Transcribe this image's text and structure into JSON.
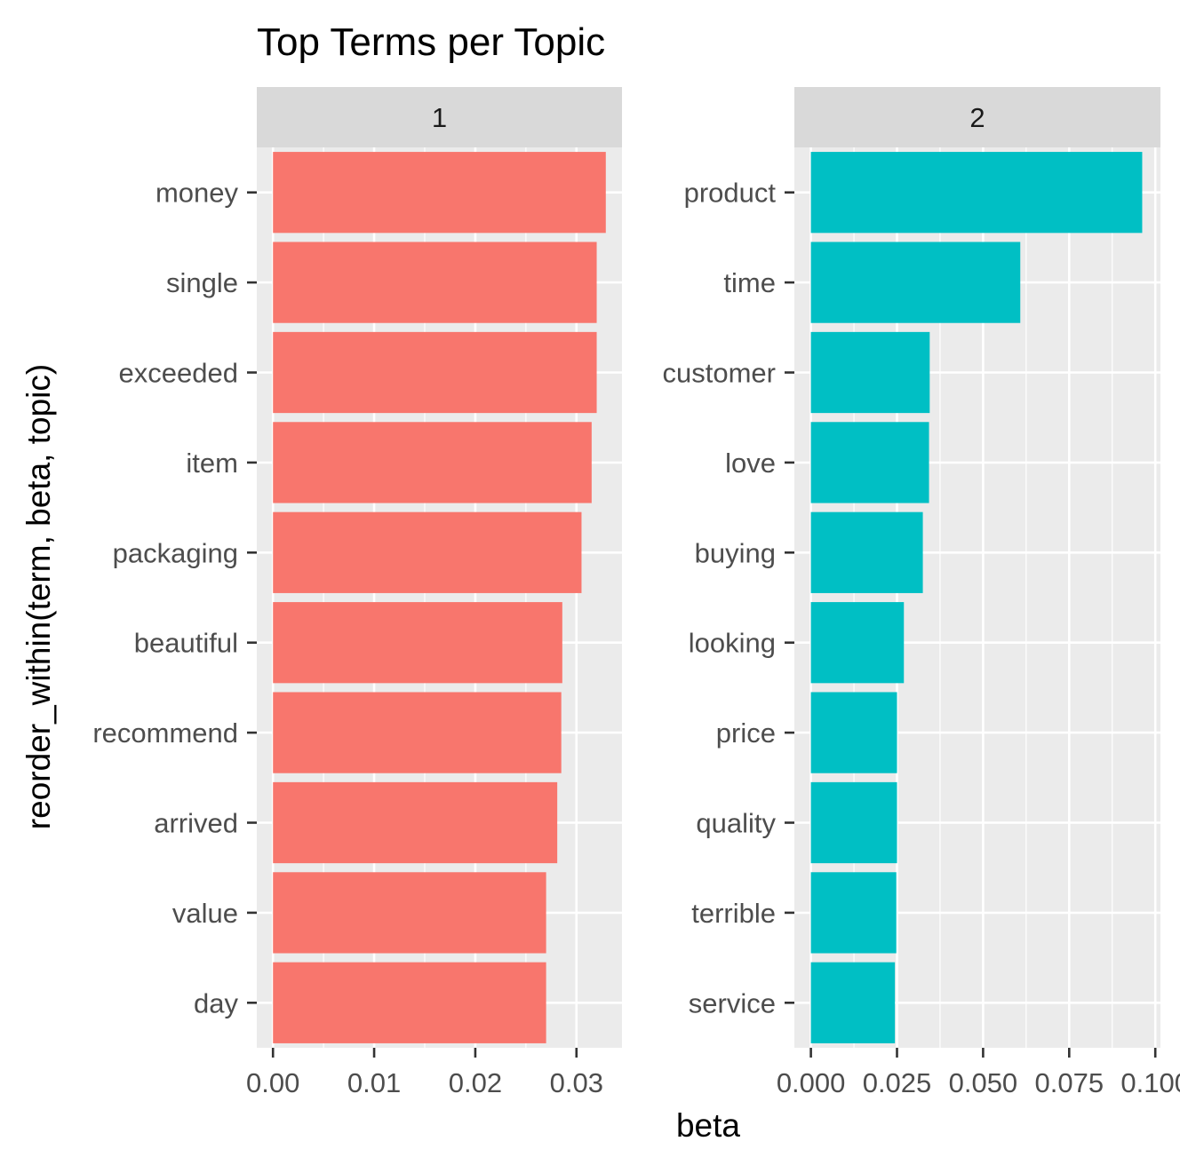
{
  "chart_data": {
    "type": "bar",
    "orientation": "horizontal",
    "title": "Top Terms per Topic",
    "xlabel": "beta",
    "ylabel": "reorder_within(term, beta, topic)",
    "grid": true,
    "facets": [
      {
        "label": "1",
        "color": "#F8766D",
        "xlim": [
          -0.0016,
          0.0345
        ],
        "x_ticks": [
          "0.00",
          "0.01",
          "0.02",
          "0.03"
        ],
        "x_tick_values": [
          0,
          0.01,
          0.02,
          0.03
        ],
        "categories": [
          "money",
          "single",
          "exceeded",
          "item",
          "packaging",
          "beautiful",
          "recommend",
          "arrived",
          "value",
          "day"
        ],
        "values": [
          0.0329,
          0.032,
          0.032,
          0.0315,
          0.0305,
          0.0286,
          0.0285,
          0.0281,
          0.027,
          0.027
        ]
      },
      {
        "label": "2",
        "color": "#00BFC4",
        "xlim": [
          -0.0048,
          0.1015
        ],
        "x_ticks": [
          "0.000",
          "0.025",
          "0.050",
          "0.075",
          "0.100"
        ],
        "x_tick_values": [
          0,
          0.025,
          0.05,
          0.075,
          0.1
        ],
        "categories": [
          "product",
          "time",
          "customer",
          "love",
          "buying",
          "looking",
          "price",
          "quality",
          "terrible",
          "service"
        ],
        "values": [
          0.0962,
          0.0608,
          0.0345,
          0.0343,
          0.0325,
          0.027,
          0.025,
          0.025,
          0.0248,
          0.0244
        ]
      }
    ]
  }
}
